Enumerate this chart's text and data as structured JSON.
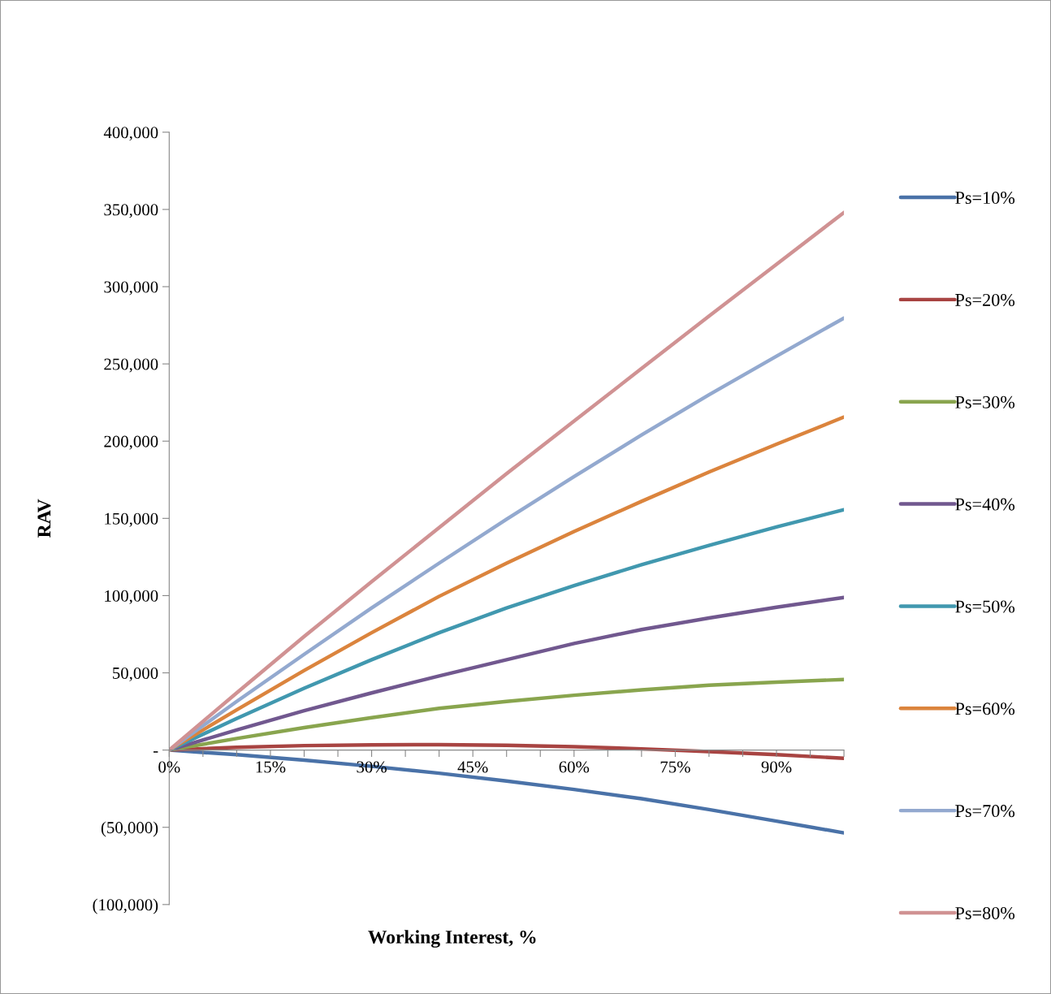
{
  "chart_data": {
    "type": "line",
    "xlabel": "Working Interest, %",
    "ylabel": "RAV",
    "x": [
      0,
      10,
      20,
      30,
      40,
      50,
      60,
      70,
      80,
      90,
      100
    ],
    "series": [
      {
        "name": "Ps=10%",
        "color": "#4a72a8",
        "values": [
          0,
          -3000,
          -6500,
          -10500,
          -15000,
          -20000,
          -25500,
          -31500,
          -38500,
          -46000,
          -53600
        ]
      },
      {
        "name": "Ps=20%",
        "color": "#a84442",
        "values": [
          0,
          1800,
          2900,
          3400,
          3500,
          3100,
          2200,
          800,
          -1000,
          -3000,
          -5300
        ]
      },
      {
        "name": "Ps=30%",
        "color": "#89a54e",
        "values": [
          0,
          7500,
          14500,
          21000,
          27000,
          31500,
          35500,
          39000,
          42000,
          44000,
          45700
        ]
      },
      {
        "name": "Ps=40%",
        "color": "#71588f",
        "values": [
          0,
          13000,
          25500,
          37000,
          48000,
          58500,
          69000,
          78000,
          85500,
          92500,
          98800
        ]
      },
      {
        "name": "Ps=50%",
        "color": "#4198af",
        "values": [
          0,
          20500,
          40000,
          58500,
          76000,
          92000,
          106500,
          120000,
          132500,
          144500,
          155600
        ]
      },
      {
        "name": "Ps=60%",
        "color": "#db843d",
        "values": [
          0,
          26000,
          51500,
          76000,
          99500,
          121000,
          141500,
          161000,
          180000,
          198000,
          215600
        ]
      },
      {
        "name": "Ps=70%",
        "color": "#93a9cf",
        "values": [
          0,
          31500,
          62000,
          92000,
          121000,
          149500,
          177000,
          204000,
          230000,
          255000,
          279700
        ]
      },
      {
        "name": "Ps=80%",
        "color": "#d09293",
        "values": [
          0,
          37000,
          73500,
          109000,
          144000,
          179000,
          213000,
          247000,
          281000,
          314500,
          348000
        ]
      }
    ],
    "xlim": [
      0,
      100
    ],
    "xticks": [
      {
        "value": 0,
        "label": "0%"
      },
      {
        "value": 5,
        "label": null
      },
      {
        "value": 10,
        "label": null
      },
      {
        "value": 15,
        "label": "15%"
      },
      {
        "value": 20,
        "label": null
      },
      {
        "value": 25,
        "label": null
      },
      {
        "value": 30,
        "label": "30%"
      },
      {
        "value": 35,
        "label": null
      },
      {
        "value": 40,
        "label": null
      },
      {
        "value": 45,
        "label": "45%"
      },
      {
        "value": 50,
        "label": null
      },
      {
        "value": 55,
        "label": null
      },
      {
        "value": 60,
        "label": "60%"
      },
      {
        "value": 65,
        "label": null
      },
      {
        "value": 70,
        "label": null
      },
      {
        "value": 75,
        "label": "75%"
      },
      {
        "value": 80,
        "label": null
      },
      {
        "value": 85,
        "label": null
      },
      {
        "value": 90,
        "label": "90%"
      },
      {
        "value": 95,
        "label": null
      },
      {
        "value": 100,
        "label": null
      }
    ],
    "ylim": [
      -100000,
      400000
    ],
    "yticks": [
      {
        "value": -100000,
        "label": "(100,000)"
      },
      {
        "value": -50000,
        "label": "(50,000)"
      },
      {
        "value": 0,
        "label": "-"
      },
      {
        "value": 50000,
        "label": "50,000"
      },
      {
        "value": 100000,
        "label": "100,000"
      },
      {
        "value": 150000,
        "label": "150,000"
      },
      {
        "value": 200000,
        "label": "200,000"
      },
      {
        "value": 250000,
        "label": "250,000"
      },
      {
        "value": 300000,
        "label": "300,000"
      },
      {
        "value": 350000,
        "label": "350,000"
      },
      {
        "value": 400000,
        "label": "400,000"
      }
    ],
    "grid": false,
    "legend": "right",
    "marker": "none",
    "line_style": "solid"
  }
}
